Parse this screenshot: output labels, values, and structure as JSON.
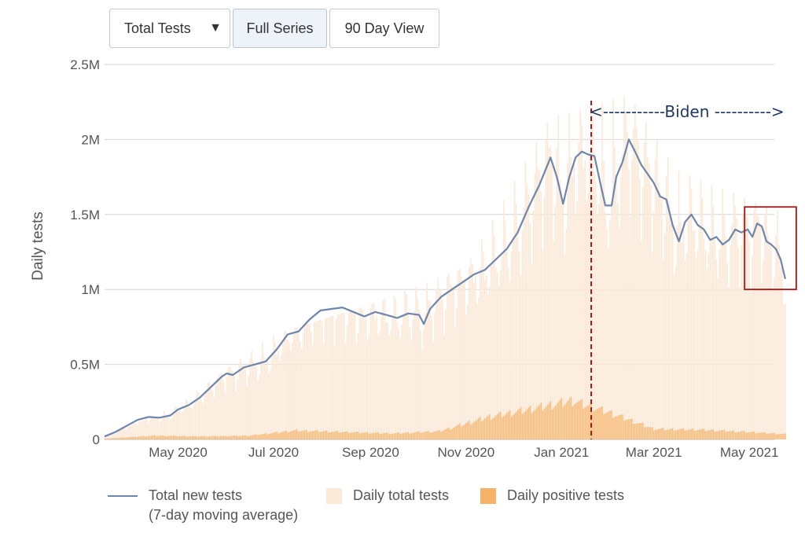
{
  "toolbar": {
    "metric_select": {
      "label": "Total Tests",
      "caret": "▼"
    },
    "full_series_label": "Full Series",
    "ninety_day_label": "90 Day View"
  },
  "legend": {
    "line_label_1": "Total new tests",
    "line_label_2": "(7-day moving average)",
    "total_label": "Daily total tests",
    "positive_label": "Daily positive tests"
  },
  "colors": {
    "moving_average_line": "#6e86ad",
    "daily_total_bars": "#fbe9d8",
    "daily_positive_bars": "#f6b266",
    "annotation_line": "#a31515",
    "annotation_text": "#1f3864",
    "highlight_box": "#a31515"
  },
  "chart_data": {
    "type": "bar+line",
    "ylabel": "Daily tests",
    "ylim": [
      0,
      2500000
    ],
    "yticks": [
      0,
      500000,
      1000000,
      1500000,
      2000000,
      2500000
    ],
    "ytick_labels": [
      "0",
      "0.5M",
      "1M",
      "1.5M",
      "2M",
      "2.5M"
    ],
    "xlim": [
      "2020-03-15",
      "2021-05-17"
    ],
    "xticks": [
      "2020-05-01",
      "2020-07-01",
      "2020-09-01",
      "2020-11-01",
      "2021-01-01",
      "2021-03-01",
      "2021-05-01"
    ],
    "xtick_labels": [
      "May 2020",
      "Jul 2020",
      "Sep 2020",
      "Nov 2020",
      "Jan 2021",
      "Mar 2021",
      "May 2021"
    ],
    "grid": "horizontal",
    "legend_position": "bottom",
    "series": [
      {
        "name": "Total new tests (7-day moving average)",
        "type": "line",
        "points": [
          [
            "2020-03-15",
            20000
          ],
          [
            "2020-03-22",
            50000
          ],
          [
            "2020-03-29",
            90000
          ],
          [
            "2020-04-05",
            130000
          ],
          [
            "2020-04-12",
            150000
          ],
          [
            "2020-04-19",
            145000
          ],
          [
            "2020-04-26",
            160000
          ],
          [
            "2020-05-01",
            200000
          ],
          [
            "2020-05-08",
            230000
          ],
          [
            "2020-05-15",
            280000
          ],
          [
            "2020-05-22",
            350000
          ],
          [
            "2020-05-29",
            420000
          ],
          [
            "2020-06-01",
            440000
          ],
          [
            "2020-06-05",
            430000
          ],
          [
            "2020-06-12",
            480000
          ],
          [
            "2020-06-19",
            500000
          ],
          [
            "2020-06-26",
            520000
          ],
          [
            "2020-07-03",
            600000
          ],
          [
            "2020-07-10",
            700000
          ],
          [
            "2020-07-17",
            720000
          ],
          [
            "2020-07-24",
            800000
          ],
          [
            "2020-07-31",
            860000
          ],
          [
            "2020-08-07",
            870000
          ],
          [
            "2020-08-14",
            880000
          ],
          [
            "2020-08-21",
            850000
          ],
          [
            "2020-08-28",
            820000
          ],
          [
            "2020-09-04",
            850000
          ],
          [
            "2020-09-11",
            830000
          ],
          [
            "2020-09-18",
            810000
          ],
          [
            "2020-09-25",
            840000
          ],
          [
            "2020-10-02",
            830000
          ],
          [
            "2020-10-05",
            770000
          ],
          [
            "2020-10-09",
            870000
          ],
          [
            "2020-10-16",
            950000
          ],
          [
            "2020-10-23",
            1000000
          ],
          [
            "2020-10-30",
            1050000
          ],
          [
            "2020-11-06",
            1100000
          ],
          [
            "2020-11-13",
            1130000
          ],
          [
            "2020-11-20",
            1200000
          ],
          [
            "2020-11-27",
            1270000
          ],
          [
            "2020-12-04",
            1380000
          ],
          [
            "2020-12-11",
            1550000
          ],
          [
            "2020-12-18",
            1700000
          ],
          [
            "2020-12-25",
            1880000
          ],
          [
            "2020-12-29",
            1750000
          ],
          [
            "2021-01-02",
            1570000
          ],
          [
            "2021-01-06",
            1750000
          ],
          [
            "2021-01-10",
            1880000
          ],
          [
            "2021-01-14",
            1920000
          ],
          [
            "2021-01-18",
            1900000
          ],
          [
            "2021-01-22",
            1890000
          ],
          [
            "2021-01-26",
            1700000
          ],
          [
            "2021-01-29",
            1560000
          ],
          [
            "2021-02-02",
            1560000
          ],
          [
            "2021-02-05",
            1750000
          ],
          [
            "2021-02-09",
            1850000
          ],
          [
            "2021-02-13",
            2000000
          ],
          [
            "2021-02-17",
            1920000
          ],
          [
            "2021-02-21",
            1830000
          ],
          [
            "2021-02-25",
            1770000
          ],
          [
            "2021-03-01",
            1710000
          ],
          [
            "2021-03-05",
            1620000
          ],
          [
            "2021-03-09",
            1600000
          ],
          [
            "2021-03-13",
            1430000
          ],
          [
            "2021-03-17",
            1320000
          ],
          [
            "2021-03-21",
            1450000
          ],
          [
            "2021-03-25",
            1500000
          ],
          [
            "2021-03-29",
            1430000
          ],
          [
            "2021-04-02",
            1400000
          ],
          [
            "2021-04-06",
            1330000
          ],
          [
            "2021-04-10",
            1350000
          ],
          [
            "2021-04-14",
            1300000
          ],
          [
            "2021-04-18",
            1330000
          ],
          [
            "2021-04-22",
            1400000
          ],
          [
            "2021-04-26",
            1380000
          ],
          [
            "2021-04-30",
            1400000
          ],
          [
            "2021-05-03",
            1350000
          ],
          [
            "2021-05-06",
            1440000
          ],
          [
            "2021-05-09",
            1420000
          ],
          [
            "2021-05-12",
            1320000
          ],
          [
            "2021-05-15",
            1300000
          ],
          [
            "2021-05-18",
            1270000
          ],
          [
            "2021-05-21",
            1200000
          ],
          [
            "2021-05-24",
            1070000
          ]
        ]
      },
      {
        "name": "Daily total tests",
        "type": "bar",
        "note": "daily bars fluctuating around the moving average",
        "envelope": [
          [
            "2020-03-15",
            20000
          ],
          [
            "2020-05-01",
            230000
          ],
          [
            "2020-07-01",
            700000
          ],
          [
            "2020-09-01",
            900000
          ],
          [
            "2020-11-01",
            1150000
          ],
          [
            "2020-12-25",
            2150000
          ],
          [
            "2021-01-15",
            2200000
          ],
          [
            "2021-02-13",
            2300000
          ],
          [
            "2021-03-15",
            1800000
          ],
          [
            "2021-05-24",
            1500000
          ]
        ]
      },
      {
        "name": "Daily positive tests",
        "type": "bar",
        "points": [
          [
            "2020-03-15",
            5000
          ],
          [
            "2020-04-15",
            25000
          ],
          [
            "2020-05-15",
            20000
          ],
          [
            "2020-06-15",
            25000
          ],
          [
            "2020-07-15",
            60000
          ],
          [
            "2020-08-15",
            50000
          ],
          [
            "2020-09-15",
            40000
          ],
          [
            "2020-10-15",
            55000
          ],
          [
            "2020-11-15",
            150000
          ],
          [
            "2020-12-15",
            210000
          ],
          [
            "2021-01-08",
            260000
          ],
          [
            "2021-02-01",
            180000
          ],
          [
            "2021-03-01",
            70000
          ],
          [
            "2021-04-01",
            65000
          ],
          [
            "2021-05-01",
            50000
          ],
          [
            "2021-05-24",
            35000
          ]
        ]
      }
    ],
    "annotations": [
      {
        "type": "vline",
        "x": "2021-01-20"
      },
      {
        "type": "text",
        "label": "<-----------Biden ---------->"
      },
      {
        "type": "box",
        "x_range": [
          "2021-04-28",
          "2021-05-31"
        ],
        "y_range": [
          1000000,
          1550000
        ]
      }
    ]
  }
}
